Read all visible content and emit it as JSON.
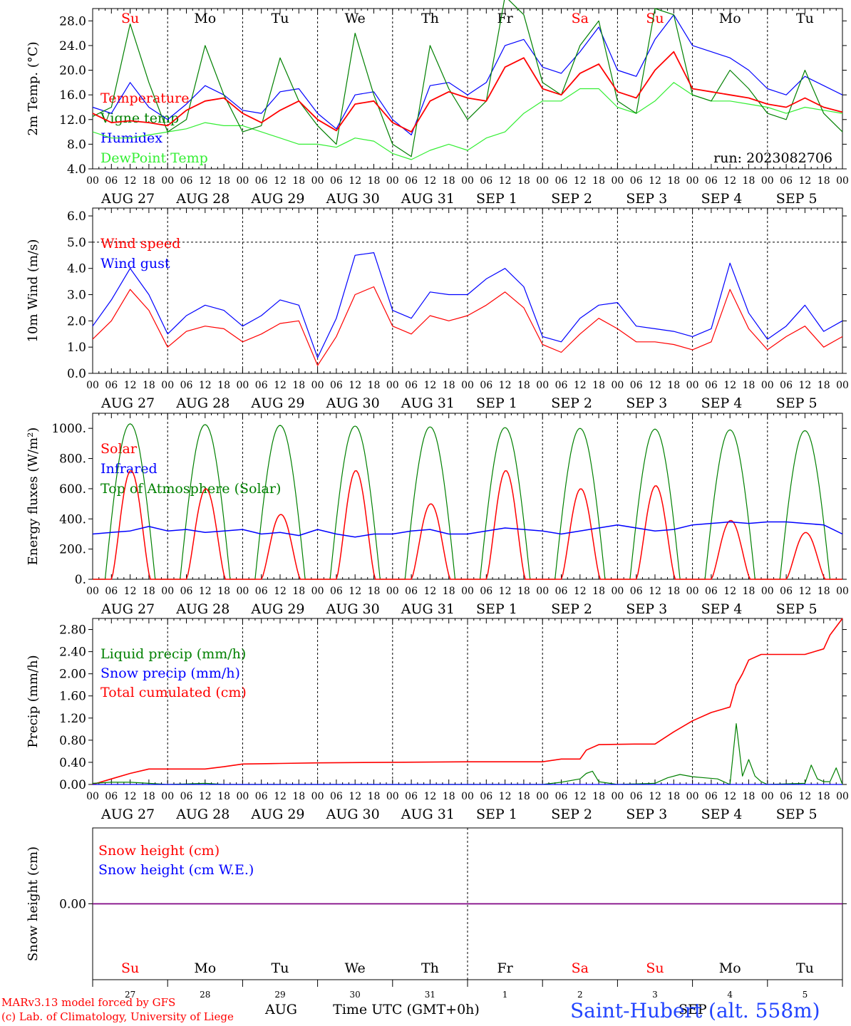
{
  "colors": {
    "red": "#ff0000",
    "dark_green": "#008000",
    "light_green": "#33ee33",
    "blue": "#0000ff",
    "purple": "#800080",
    "station_blue": "#2244ff"
  },
  "x_axis": {
    "hour_ticks": [
      "00",
      "06",
      "12",
      "18"
    ],
    "final_tick": "00",
    "dates": [
      "AUG 27",
      "AUG 28",
      "AUG 29",
      "AUG 30",
      "AUG 31",
      "SEP  1",
      "SEP  2",
      "SEP  3",
      "SEP  4",
      "SEP  5"
    ],
    "weekdays": [
      "Su",
      "Mo",
      "Tu",
      "We",
      "Th",
      "Fr",
      "Sa",
      "Su",
      "Mo",
      "Tu"
    ],
    "weekend_flags": [
      true,
      false,
      false,
      false,
      false,
      false,
      true,
      true,
      false,
      false
    ],
    "day_numbers": [
      "27",
      "28",
      "29",
      "30",
      "31",
      "1",
      "2",
      "3",
      "4",
      "5"
    ],
    "month_labels": [
      "AUG",
      "SEP"
    ],
    "title": "Time UTC (GMT+0h)"
  },
  "panels": {
    "temp": {
      "ylabel": "2m Temp. (°C)",
      "ticks": [
        "28.0",
        "24.0",
        "20.0",
        "16.0",
        "12.0",
        "8.0",
        "4.0"
      ],
      "legend": [
        "Temperature",
        "Vigne temp",
        "Humidex",
        "DewPoint Temp"
      ],
      "run": "run: 2023082706"
    },
    "wind": {
      "ylabel": "10m Wind (m/s)",
      "ticks": [
        "6.0",
        "5.0",
        "4.0",
        "3.0",
        "2.0",
        "1.0",
        "0.0"
      ],
      "legend": [
        "Wind speed",
        "Wind gust"
      ]
    },
    "energy": {
      "ylabel": "Energy fluxes (W/m²)",
      "ticks": [
        "1000.",
        "800.",
        "600.",
        "400.",
        "200.",
        "0."
      ],
      "legend": [
        "Solar",
        "Infrared",
        "Top of Atmosphere (Solar)"
      ]
    },
    "precip": {
      "ylabel": "Precip (mm/h)",
      "ticks": [
        "2.80",
        "2.40",
        "2.00",
        "1.60",
        "1.20",
        "0.80",
        "0.40",
        "0.00"
      ],
      "legend": [
        "Liquid precip (mm/h)",
        "Snow precip (mm/h)",
        "Total cumulated (cm)"
      ]
    },
    "snow": {
      "ylabel": "Snow height (cm)",
      "ticks": [
        "0.00"
      ],
      "legend": [
        "Snow height (cm)",
        "Snow height (cm W.E.)"
      ]
    }
  },
  "footer": {
    "model": "MARv3.13 model forced by GFS",
    "lab": "(c) Lab. of Climatology, University of Liege",
    "station": "Saint-Hubert (alt. 558m)"
  },
  "chart_data": [
    {
      "type": "line",
      "title": "",
      "xlabel": "",
      "ylabel": "2m Temp. (°C)",
      "ylim": [
        4,
        30
      ],
      "x_unit": "hours since 2023-08-27 00 UTC",
      "x": [
        0,
        6,
        12,
        18,
        24,
        30,
        36,
        42,
        48,
        54,
        60,
        66,
        72,
        78,
        84,
        90,
        96,
        102,
        108,
        114,
        120,
        126,
        132,
        138,
        144,
        150,
        156,
        162,
        168,
        174,
        180,
        186,
        192,
        198,
        204,
        210,
        216,
        222,
        228,
        234,
        240
      ],
      "series": [
        {
          "name": "Temperature",
          "color": "red",
          "values": [
            13,
            11.5,
            11.8,
            11.5,
            11,
            13.5,
            15,
            15.5,
            13,
            11.5,
            13.5,
            15,
            12,
            10.2,
            14.5,
            15,
            11.5,
            10,
            15,
            16.5,
            15.5,
            15,
            20.5,
            22,
            17,
            16,
            19.5,
            21,
            16.5,
            15.5,
            20,
            23,
            17,
            16.5,
            16,
            15.5,
            14.5,
            14,
            15.5,
            14,
            13.2
          ]
        },
        {
          "name": "Vigne temp",
          "color": "dark_green",
          "values": [
            12.5,
            14,
            27.5,
            18,
            10,
            12,
            24,
            16,
            10,
            11,
            22,
            15,
            11,
            8,
            26,
            16,
            8,
            6,
            24,
            17,
            12,
            15,
            32,
            29,
            18,
            16,
            24,
            28,
            15,
            13,
            30,
            29,
            16,
            15,
            20,
            17,
            13,
            12,
            20,
            13,
            10
          ]
        },
        {
          "name": "Humidex",
          "color": "blue",
          "values": [
            14,
            13,
            18,
            14,
            12,
            14.5,
            17.5,
            16,
            13.5,
            13,
            16.5,
            17,
            13,
            10.5,
            16,
            16.5,
            12,
            9.5,
            17.5,
            18,
            16,
            18,
            24,
            25,
            20.5,
            19.5,
            23,
            27,
            20,
            19,
            25,
            29,
            24,
            23,
            22,
            20,
            17,
            16,
            19,
            17.5,
            16
          ]
        },
        {
          "name": "DewPoint Temp",
          "color": "light_green",
          "values": [
            10,
            9,
            9,
            9.5,
            10,
            10.5,
            11.5,
            11,
            11,
            10,
            9,
            8,
            8,
            7.5,
            9,
            8.5,
            6.5,
            5.5,
            7,
            8,
            7,
            9,
            10,
            13,
            15,
            15,
            17,
            17,
            14,
            13,
            15,
            18,
            16,
            15,
            15,
            14.5,
            14,
            13,
            14,
            13.5,
            13
          ]
        }
      ]
    },
    {
      "type": "line",
      "title": "",
      "xlabel": "",
      "ylabel": "10m Wind (m/s)",
      "ylim": [
        0,
        6
      ],
      "x_unit": "hours since 2023-08-27 00 UTC",
      "x": [
        0,
        6,
        12,
        18,
        24,
        30,
        36,
        42,
        48,
        54,
        60,
        66,
        72,
        78,
        84,
        90,
        96,
        102,
        108,
        114,
        120,
        126,
        132,
        138,
        144,
        150,
        156,
        162,
        168,
        174,
        180,
        186,
        192,
        198,
        204,
        210,
        216,
        222,
        228,
        234,
        240
      ],
      "series": [
        {
          "name": "Wind speed",
          "color": "red",
          "values": [
            1.3,
            2.0,
            3.2,
            2.4,
            1.0,
            1.6,
            1.8,
            1.7,
            1.2,
            1.5,
            1.9,
            2.0,
            0.3,
            1.4,
            3.0,
            3.3,
            1.8,
            1.5,
            2.2,
            2.0,
            2.2,
            2.6,
            3.1,
            2.5,
            1.1,
            0.8,
            1.5,
            2.1,
            1.7,
            1.2,
            1.2,
            1.1,
            0.9,
            1.2,
            3.2,
            1.7,
            0.9,
            1.4,
            1.8,
            1.0,
            1.4
          ]
        },
        {
          "name": "Wind gust",
          "color": "blue",
          "values": [
            1.8,
            2.8,
            4.0,
            3.0,
            1.5,
            2.2,
            2.6,
            2.4,
            1.8,
            2.2,
            2.8,
            2.6,
            0.6,
            2.1,
            4.5,
            4.6,
            2.4,
            2.1,
            3.1,
            3.0,
            3.0,
            3.6,
            4.0,
            3.3,
            1.4,
            1.2,
            2.1,
            2.6,
            2.7,
            1.8,
            1.7,
            1.6,
            1.4,
            1.7,
            4.2,
            2.3,
            1.3,
            1.8,
            2.6,
            1.6,
            2.0
          ]
        }
      ]
    },
    {
      "type": "line",
      "title": "",
      "xlabel": "",
      "ylabel": "Energy fluxes (W/m²)",
      "ylim": [
        0,
        1100
      ],
      "days": 10,
      "series": [
        {
          "name": "Solar",
          "color": "red",
          "daily_peak_values": [
            720,
            600,
            430,
            720,
            500,
            720,
            600,
            620,
            390,
            310
          ]
        },
        {
          "name": "Infrared",
          "color": "blue",
          "values": [
            300,
            310,
            320,
            350,
            320,
            330,
            310,
            320,
            330,
            300,
            310,
            290,
            330,
            300,
            280,
            300,
            300,
            320,
            330,
            300,
            300,
            320,
            340,
            330,
            320,
            300,
            320,
            340,
            360,
            340,
            320,
            330,
            360,
            370,
            380,
            370,
            380,
            380,
            370,
            360,
            300
          ]
        },
        {
          "name": "Top of Atmosphere (Solar)",
          "color": "dark_green",
          "daily_peak_values": [
            1030,
            1025,
            1020,
            1015,
            1010,
            1005,
            1000,
            995,
            990,
            985
          ]
        }
      ]
    },
    {
      "type": "line",
      "title": "",
      "xlabel": "",
      "ylabel": "Precip (mm/h)",
      "ylim": [
        0,
        3.0
      ],
      "x_unit": "hours since 2023-08-27 00 UTC",
      "series": [
        {
          "name": "Total cumulated (cm)",
          "color": "red",
          "x": [
            0,
            6,
            12,
            18,
            24,
            30,
            36,
            42,
            48,
            60,
            72,
            96,
            120,
            132,
            144,
            150,
            156,
            158,
            162,
            174,
            180,
            186,
            192,
            198,
            204,
            206,
            208,
            210,
            214,
            228,
            234,
            236,
            240
          ],
          "values": [
            0,
            0.1,
            0.2,
            0.28,
            0.28,
            0.28,
            0.28,
            0.32,
            0.37,
            0.38,
            0.39,
            0.4,
            0.41,
            0.41,
            0.41,
            0.46,
            0.46,
            0.62,
            0.72,
            0.73,
            0.73,
            0.95,
            1.15,
            1.3,
            1.4,
            1.8,
            2.0,
            2.25,
            2.35,
            2.35,
            2.45,
            2.7,
            3.0
          ]
        },
        {
          "name": "Liquid precip (mm/h)",
          "color": "dark_green",
          "x": [
            0,
            6,
            12,
            18,
            24,
            36,
            42,
            144,
            150,
            156,
            158,
            160,
            162,
            168,
            180,
            184,
            188,
            192,
            196,
            200,
            204,
            206,
            208,
            210,
            212,
            214,
            216,
            228,
            230,
            232,
            234,
            236,
            238,
            240
          ],
          "values": [
            0.02,
            0.04,
            0.04,
            0.02,
            0,
            0.02,
            0,
            0,
            0.04,
            0.1,
            0.2,
            0.24,
            0.05,
            0,
            0.02,
            0.12,
            0.18,
            0.14,
            0.12,
            0.1,
            0,
            1.1,
            0.15,
            0.45,
            0.15,
            0.05,
            0,
            0.02,
            0.35,
            0.1,
            0.05,
            0.05,
            0.3,
            0
          ]
        },
        {
          "name": "Snow precip (mm/h)",
          "color": "blue",
          "x": [
            0,
            240
          ],
          "values": [
            0,
            0
          ]
        }
      ]
    },
    {
      "type": "line",
      "title": "",
      "xlabel": "",
      "ylabel": "Snow height (cm)",
      "series": [
        {
          "name": "Snow height (cm)",
          "color": "red",
          "x": [
            0,
            240
          ],
          "values": [
            0,
            0
          ]
        },
        {
          "name": "Snow height (cm W.E.)",
          "color": "blue",
          "x": [
            0,
            240
          ],
          "values": [
            0,
            0
          ]
        }
      ]
    }
  ]
}
